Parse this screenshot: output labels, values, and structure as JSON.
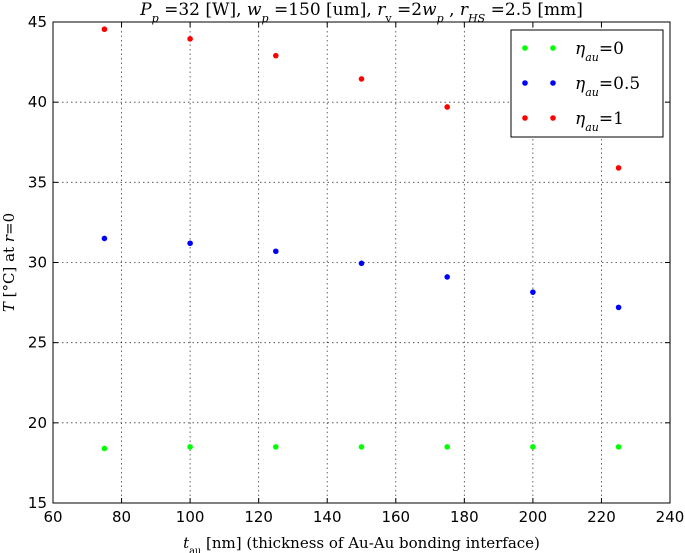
{
  "chart_data": {
    "type": "scatter",
    "title": {
      "parts": [
        {
          "t": "P",
          "i": true
        },
        {
          "t": "p",
          "sub": true,
          "i": true
        },
        {
          "t": " =32 [W], "
        },
        {
          "t": "w",
          "i": true
        },
        {
          "t": "p",
          "sub": true,
          "i": true
        },
        {
          "t": " =150 [um], "
        },
        {
          "t": "r",
          "i": true
        },
        {
          "t": "v",
          "sub": true
        },
        {
          "t": " =2"
        },
        {
          "t": "w",
          "i": true
        },
        {
          "t": "p",
          "sub": true,
          "i": true
        },
        {
          "t": " , "
        },
        {
          "t": "r",
          "i": true
        },
        {
          "t": "HS",
          "sub": true,
          "i": true
        },
        {
          "t": " =2.5 [mm]"
        }
      ]
    },
    "xlabel": {
      "parts": [
        {
          "t": "t",
          "i": true
        },
        {
          "t": "au",
          "sub": true
        },
        {
          "t": " [nm] (thickness of Au-Au bonding interface)"
        }
      ]
    },
    "ylabel": {
      "parts": [
        {
          "t": "T",
          "i": true
        },
        {
          "t": " [°C] at "
        },
        {
          "t": "r",
          "i": true
        },
        {
          "t": "=0"
        }
      ]
    },
    "xlim": [
      60,
      240
    ],
    "ylim": [
      15,
      45
    ],
    "xticks": [
      60,
      80,
      100,
      120,
      140,
      160,
      180,
      200,
      220,
      240
    ],
    "yticks": [
      15,
      20,
      25,
      30,
      35,
      40,
      45
    ],
    "grid": true,
    "legend_position": "top-right",
    "series": [
      {
        "label": [
          {
            "t": "η",
            "i": true
          },
          {
            "t": "au",
            "sub": true,
            "i": true
          },
          {
            "t": "=0"
          }
        ],
        "color": "#00ff00",
        "x": [
          75,
          100,
          125,
          150,
          175,
          200,
          225
        ],
        "y": [
          18.4,
          18.5,
          18.5,
          18.5,
          18.5,
          18.5,
          18.5
        ]
      },
      {
        "label": [
          {
            "t": "η",
            "i": true
          },
          {
            "t": "au",
            "sub": true,
            "i": true
          },
          {
            "t": "=0.5"
          }
        ],
        "color": "#0000ff",
        "x": [
          75,
          100,
          125,
          150,
          175,
          200,
          225
        ],
        "y": [
          31.5,
          31.2,
          30.7,
          29.95,
          29.1,
          28.15,
          27.2
        ]
      },
      {
        "label": [
          {
            "t": "η",
            "i": true
          },
          {
            "t": "au",
            "sub": true,
            "i": true
          },
          {
            "t": "=1"
          }
        ],
        "color": "#ff0000",
        "x": [
          75,
          100,
          125,
          150,
          175,
          225
        ],
        "y": [
          44.55,
          43.95,
          42.9,
          41.45,
          39.7,
          35.9
        ]
      }
    ]
  }
}
